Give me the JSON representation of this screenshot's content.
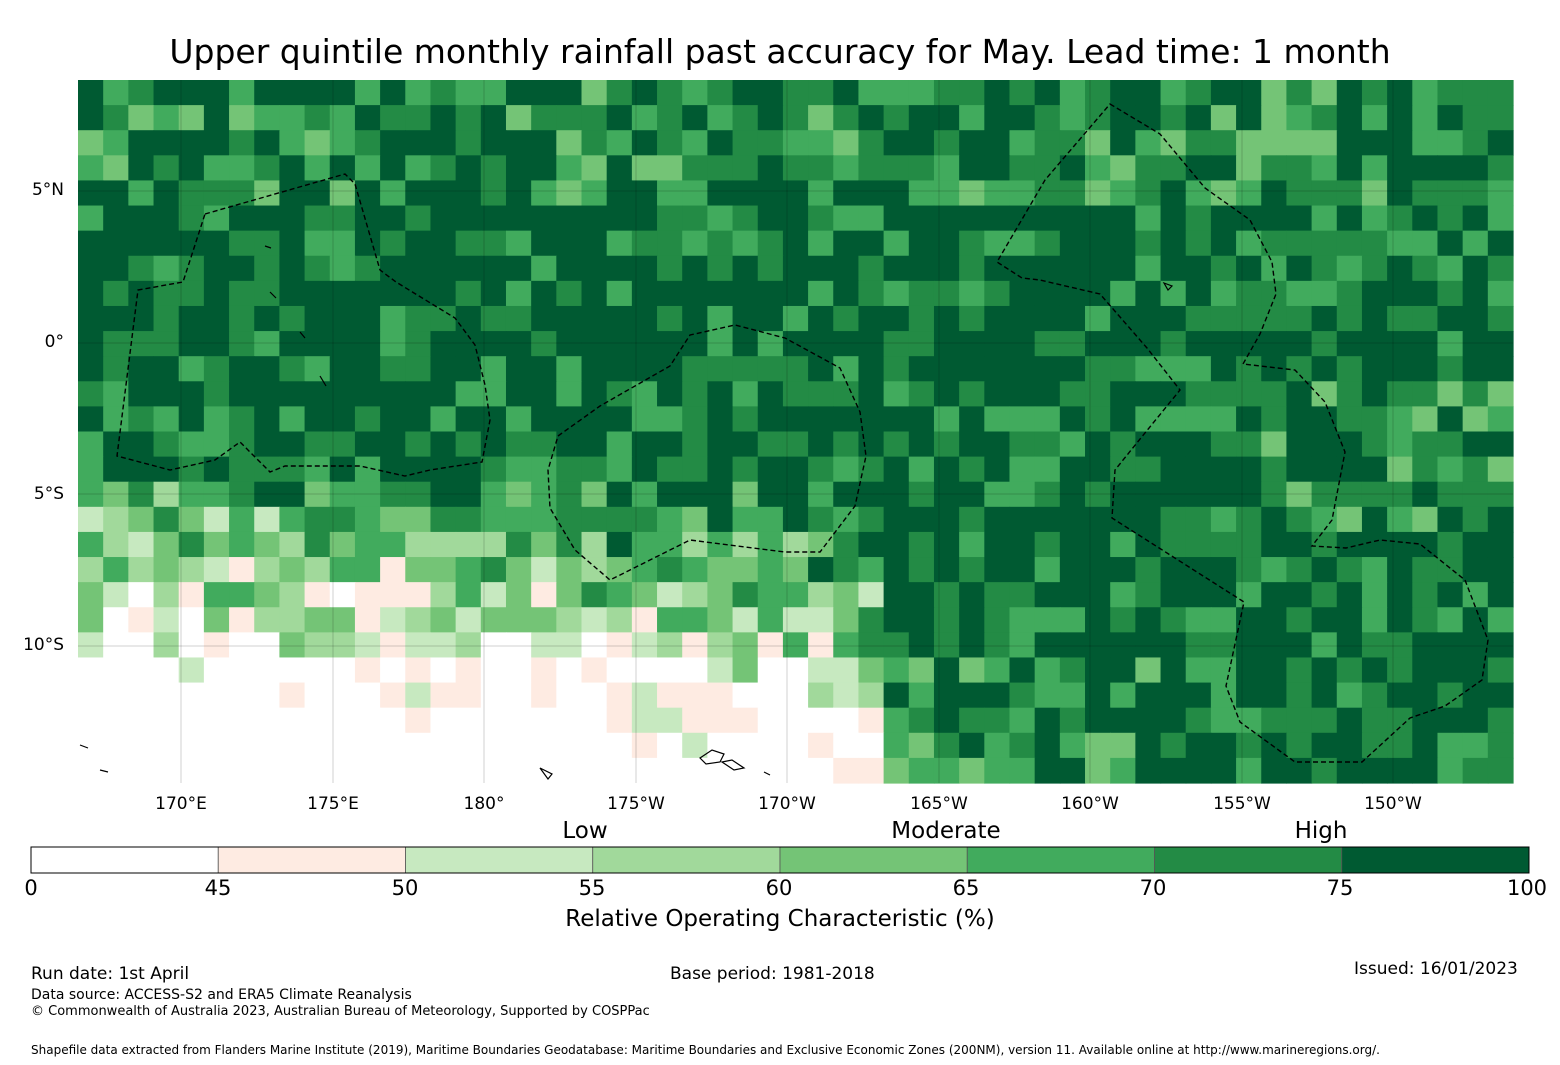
{
  "title": "Upper quintile monthly rainfall past accuracy for May. Lead time: 1 month",
  "map": {
    "lat_ticks": [
      "5°N",
      "0°",
      "5°S",
      "10°S"
    ],
    "lon_ticks": [
      "170°E",
      "175°E",
      "180°",
      "175°W",
      "170°W",
      "165°W",
      "160°W",
      "155°W",
      "150°W"
    ],
    "lon_range_deg": [
      166.6,
      213.8
    ],
    "lat_range_deg": [
      -14.6,
      8.6
    ],
    "grid_cell_deg": 0.83,
    "colors": {
      "bin_0_45": "#ffffff",
      "bin_45_50": "#feebe2",
      "bin_50_55": "#c7e9c0",
      "bin_55_60": "#a1d99b",
      "bin_60_65": "#74c476",
      "bin_65_70": "#41ab5d",
      "bin_70_75": "#238b45",
      "bin_75_100": "#005a32"
    }
  },
  "legend": {
    "categories": [
      "Low",
      "Moderate",
      "High"
    ],
    "bounds": [
      "0",
      "45",
      "50",
      "55",
      "60",
      "65",
      "70",
      "75",
      "100"
    ],
    "colors": [
      "#ffffff",
      "#feebe2",
      "#c7e9c0",
      "#a1d99b",
      "#74c476",
      "#41ab5d",
      "#238b45",
      "#005a32"
    ],
    "title": "Relative Operating Characteristic (%)"
  },
  "footer": {
    "run_date": "Run date: 1st April",
    "base_period": "Base period: 1981-2018",
    "issued": "Issued: 16/01/2023",
    "data_source": "Data source: ACCESS-S2 and ERA5 Climate Reanalysis",
    "copyright": "© Commonwealth of Australia 2023, Australian Bureau of Meteorology, Supported by COSPPac",
    "shapefile": "Shapefile data extracted from Flanders Marine Institute (2019), Maritime Boundaries Geodatabase: Maritime Boundaries and Exclusive Economic Zones (200NM), version 11. Available online at http://www.marineregions.org/."
  }
}
